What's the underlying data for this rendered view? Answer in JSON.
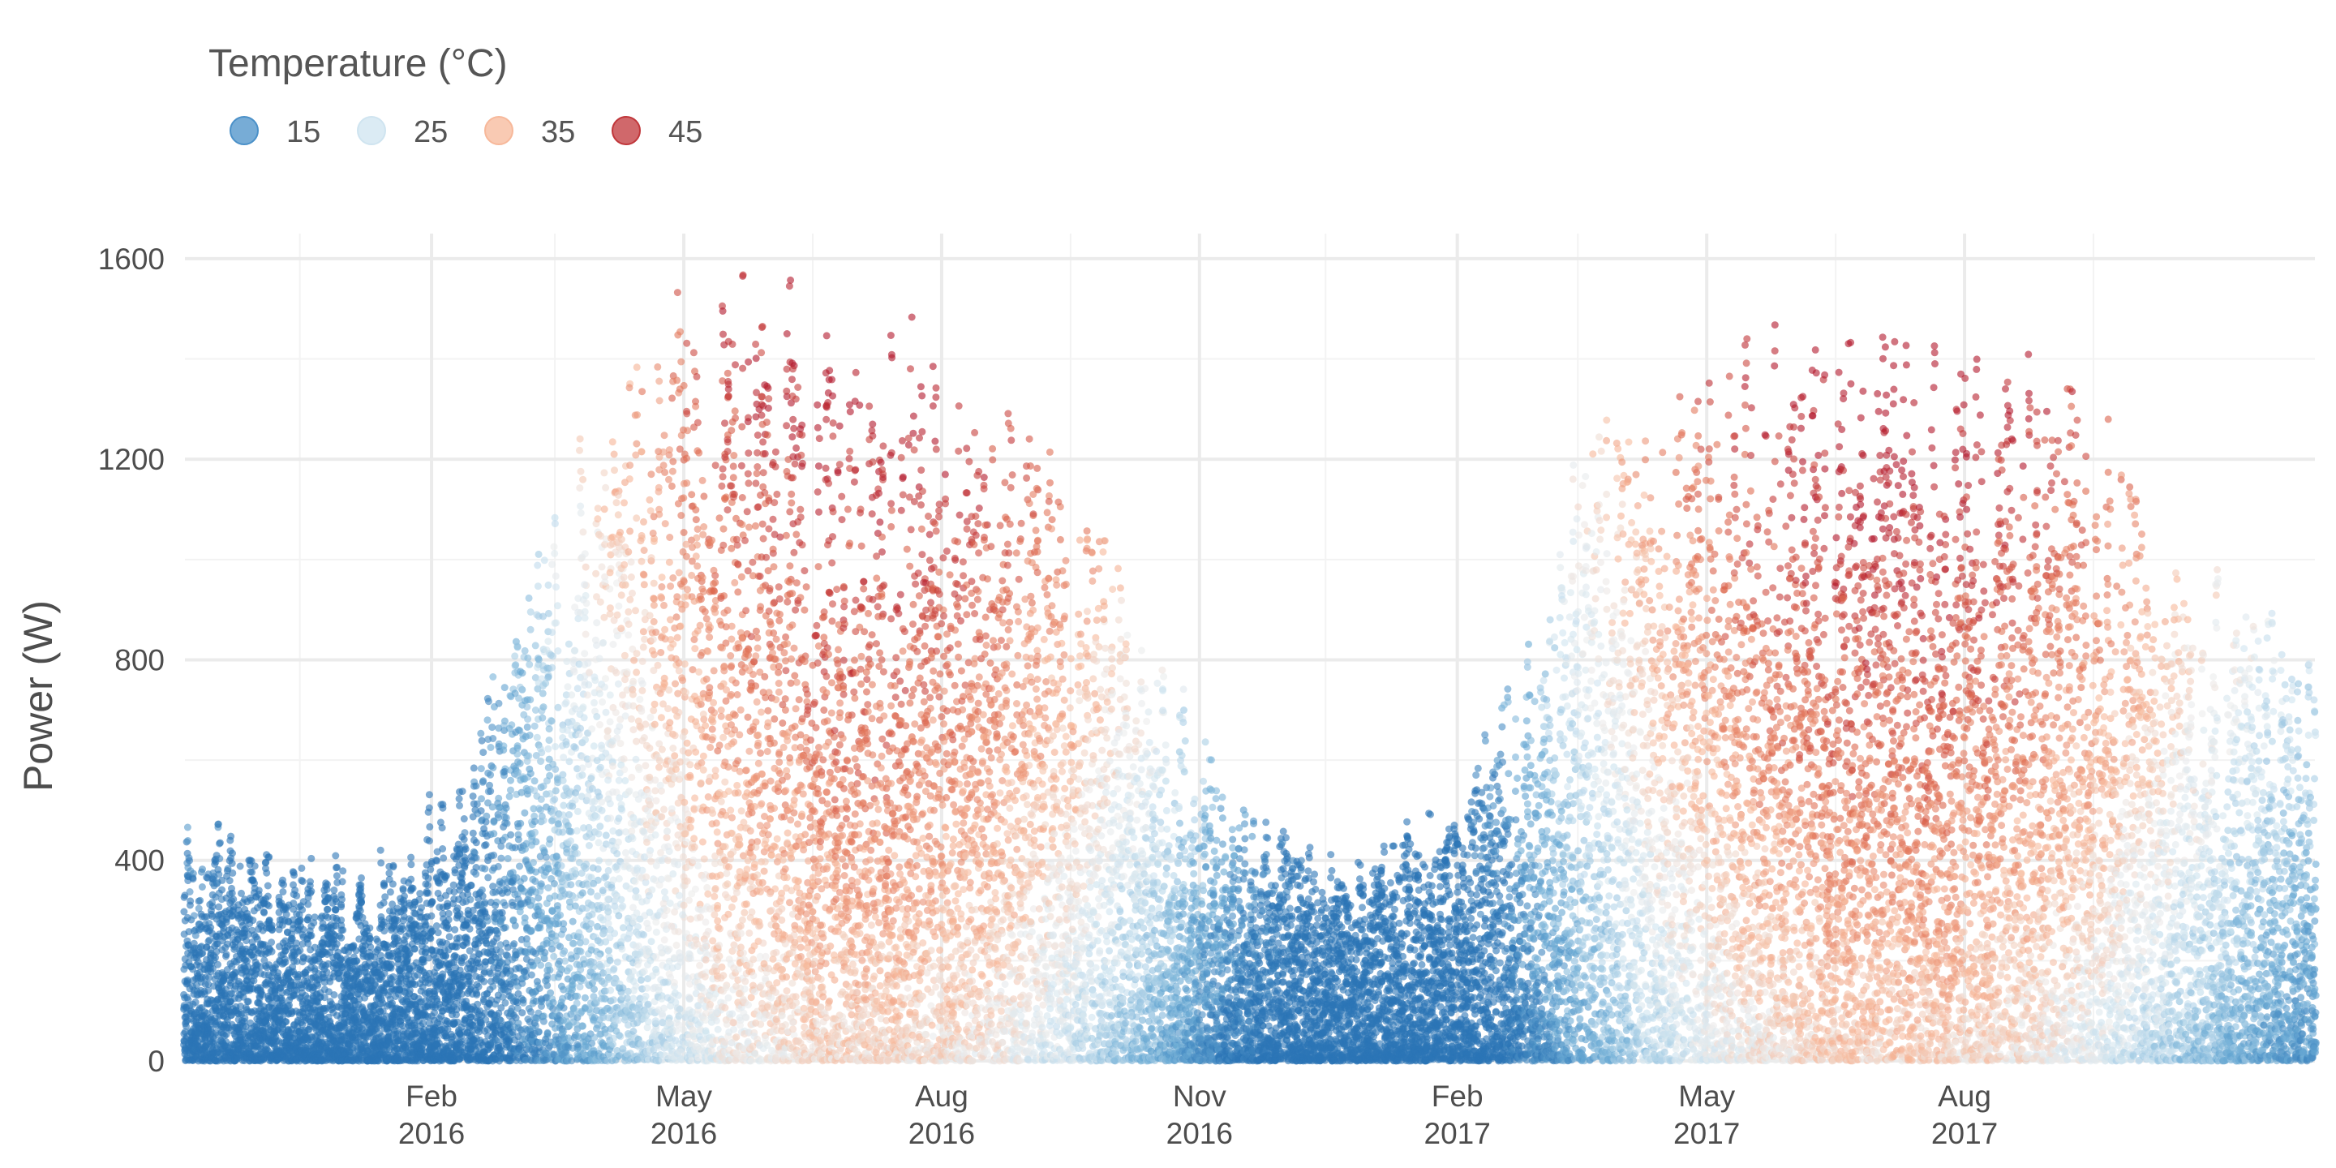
{
  "chart_data": {
    "type": "scatter",
    "title": "",
    "xlabel": "",
    "ylabel": "Power (W)",
    "ylim": [
      0,
      1650
    ],
    "xlim": [
      "2015-11-05",
      "2017-12-04"
    ],
    "y_ticks": [
      0,
      400,
      800,
      1200,
      1600
    ],
    "y_tick_labels": [
      "0",
      "400",
      "800",
      "1200",
      "1600"
    ],
    "x_ticks": [
      "2016-02-01",
      "2016-05-01",
      "2016-08-01",
      "2016-11-01",
      "2017-02-01",
      "2017-05-01",
      "2017-08-01"
    ],
    "x_tick_labels": [
      [
        "Feb",
        "2016"
      ],
      [
        "May",
        "2016"
      ],
      [
        "Aug",
        "2016"
      ],
      [
        "Nov",
        "2016"
      ],
      [
        "Feb",
        "2017"
      ],
      [
        "May",
        "2017"
      ],
      [
        "Aug",
        "2017"
      ]
    ],
    "x_minor_ticks": [
      "2015-12-16",
      "2016-03-16",
      "2016-06-16",
      "2016-09-16",
      "2016-12-16",
      "2017-03-16",
      "2017-06-16",
      "2017-09-16"
    ],
    "y_minor_ticks": [
      200,
      600,
      1000,
      1400
    ],
    "grid": true,
    "legend": {
      "title": "Temperature (°C)",
      "position": "top-left",
      "entries": [
        {
          "label": "15",
          "color": "#4a90c8"
        },
        {
          "label": "25",
          "color": "#cfe4f0"
        },
        {
          "label": "35",
          "color": "#f7b89a"
        },
        {
          "label": "45",
          "color": "#c0363a"
        }
      ]
    },
    "color_scale": {
      "variable": "temperature",
      "range": [
        10,
        48
      ],
      "stops": [
        {
          "t": 10,
          "color": "#2b74b5"
        },
        {
          "t": 17,
          "color": "#6aaad4"
        },
        {
          "t": 24,
          "color": "#cfe4f0"
        },
        {
          "t": 28,
          "color": "#ececec"
        },
        {
          "t": 33,
          "color": "#f7b89a"
        },
        {
          "t": 40,
          "color": "#de6a4f"
        },
        {
          "t": 47,
          "color": "#b2182b"
        }
      ]
    },
    "seasonal_envelope": [
      {
        "date": "2015-11-05",
        "max_power": 500,
        "temp_mean": 20
      },
      {
        "date": "2015-12-01",
        "max_power": 450,
        "temp_mean": 16
      },
      {
        "date": "2016-01-10",
        "max_power": 420,
        "temp_mean": 14
      },
      {
        "date": "2016-02-10",
        "max_power": 600,
        "temp_mean": 17
      },
      {
        "date": "2016-03-15",
        "max_power": 1150,
        "temp_mean": 26
      },
      {
        "date": "2016-04-15",
        "max_power": 1500,
        "temp_mean": 33
      },
      {
        "date": "2016-05-15",
        "max_power": 1600,
        "temp_mean": 39
      },
      {
        "date": "2016-06-20",
        "max_power": 1550,
        "temp_mean": 42
      },
      {
        "date": "2016-07-20",
        "max_power": 1500,
        "temp_mean": 42
      },
      {
        "date": "2016-08-20",
        "max_power": 1400,
        "temp_mean": 40
      },
      {
        "date": "2016-09-15",
        "max_power": 1200,
        "temp_mean": 36
      },
      {
        "date": "2016-10-15",
        "max_power": 900,
        "temp_mean": 30
      },
      {
        "date": "2016-11-15",
        "max_power": 550,
        "temp_mean": 22
      },
      {
        "date": "2016-12-15",
        "max_power": 420,
        "temp_mean": 17
      },
      {
        "date": "2017-01-20",
        "max_power": 500,
        "temp_mean": 14
      },
      {
        "date": "2017-02-15",
        "max_power": 700,
        "temp_mean": 20
      },
      {
        "date": "2017-03-15",
        "max_power": 1250,
        "temp_mean": 28
      },
      {
        "date": "2017-04-15",
        "max_power": 1450,
        "temp_mean": 35
      },
      {
        "date": "2017-05-15",
        "max_power": 1550,
        "temp_mean": 40
      },
      {
        "date": "2017-06-20",
        "max_power": 1500,
        "temp_mean": 43
      },
      {
        "date": "2017-07-20",
        "max_power": 1480,
        "temp_mean": 43
      },
      {
        "date": "2017-08-20",
        "max_power": 1450,
        "temp_mean": 41
      },
      {
        "date": "2017-09-15",
        "max_power": 1350,
        "temp_mean": 38
      },
      {
        "date": "2017-10-15",
        "max_power": 1100,
        "temp_mean": 33
      },
      {
        "date": "2017-11-15",
        "max_power": 950,
        "temp_mean": 28
      },
      {
        "date": "2017-12-04",
        "max_power": 900,
        "temp_mean": 26
      }
    ]
  }
}
